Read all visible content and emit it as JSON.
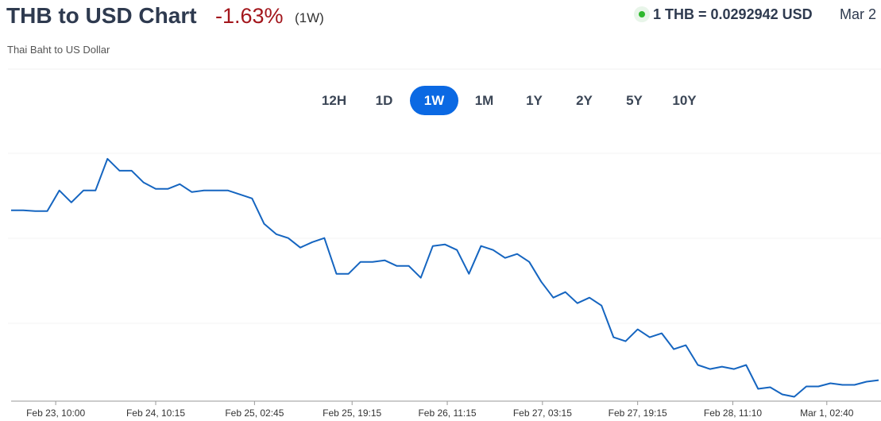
{
  "header": {
    "title": "THB to USD Chart",
    "change": "-1.63%",
    "period": "(1W)",
    "subtitle": "Thai Baht to US Dollar",
    "rate": "1 THB = 0.0292942 USD",
    "date": "Mar 2"
  },
  "ranges": [
    "12H",
    "1D",
    "1W",
    "1M",
    "1Y",
    "2Y",
    "5Y",
    "10Y"
  ],
  "active_range": "1W",
  "chart_data": {
    "type": "line",
    "color": "#1565c0",
    "x": [
      0,
      1,
      2,
      3,
      4,
      5,
      6,
      7,
      8,
      9,
      10,
      11,
      12,
      13,
      14,
      15,
      16,
      17,
      18,
      19,
      20,
      21,
      22,
      23,
      24,
      25,
      26,
      27,
      28,
      29,
      30,
      31,
      32,
      33,
      34,
      35,
      36,
      37,
      38,
      39,
      40,
      41,
      42,
      43,
      44,
      45,
      46,
      47,
      48,
      49,
      50,
      51,
      52,
      53,
      54,
      55,
      56,
      57,
      58,
      59,
      60,
      61,
      62,
      63,
      64,
      65,
      66,
      67,
      68,
      69,
      70,
      71,
      72
    ],
    "values": [
      0.02978,
      0.02978,
      0.0297777,
      0.0297777,
      0.0298368,
      0.0298027,
      0.0298368,
      0.0298368,
      0.0299276,
      0.0298935,
      0.0298935,
      0.0298595,
      0.0298413,
      0.0298413,
      0.0298549,
      0.0298322,
      0.0298368,
      0.0298368,
      0.0298368,
      0.0298254,
      0.0298141,
      0.0297414,
      0.0297119,
      0.0297006,
      0.0296733,
      0.0296892,
      0.0297006,
      0.0295984,
      0.0295984,
      0.0296325,
      0.0296325,
      0.029637,
      0.0296211,
      0.0296211,
      0.0295871,
      0.0296779,
      0.0296824,
      0.0296665,
      0.0295984,
      0.0296779,
      0.0296665,
      0.0296438,
      0.0296552,
      0.0296325,
      0.0295757,
      0.0295303,
      0.0295462,
      0.0295144,
      0.0295303,
      0.0295076,
      0.0294168,
      0.0294055,
      0.0294395,
      0.0294168,
      0.0294282,
      0.0293828,
      0.0293941,
      0.0293374,
      0.029326,
      0.0293328,
      0.029326,
      0.0293374,
      0.0292693,
      0.0292738,
      0.0292534,
      0.0292466,
      0.0292761,
      0.0292761,
      0.0292853,
      0.0292806,
      0.0292806,
      0.0292898,
      0.0292942
    ],
    "xlim": [
      0,
      72
    ],
    "ylim": [
      0.0292,
      0.03
    ],
    "xticks": [
      {
        "value": 3.7,
        "label": "Feb 23, 10:00"
      },
      {
        "value": 12,
        "label": "Feb 24, 10:15"
      },
      {
        "value": 20.2,
        "label": "Feb 25, 02:45"
      },
      {
        "value": 28.3,
        "label": "Feb 25, 19:15"
      },
      {
        "value": 36.2,
        "label": "Feb 26, 11:15"
      },
      {
        "value": 44.1,
        "label": "Feb 27, 03:15"
      },
      {
        "value": 52,
        "label": "Feb 27, 19:15"
      },
      {
        "value": 59.9,
        "label": "Feb 28, 11:10"
      },
      {
        "value": 67.7,
        "label": "Mar 1, 02:40"
      }
    ]
  }
}
